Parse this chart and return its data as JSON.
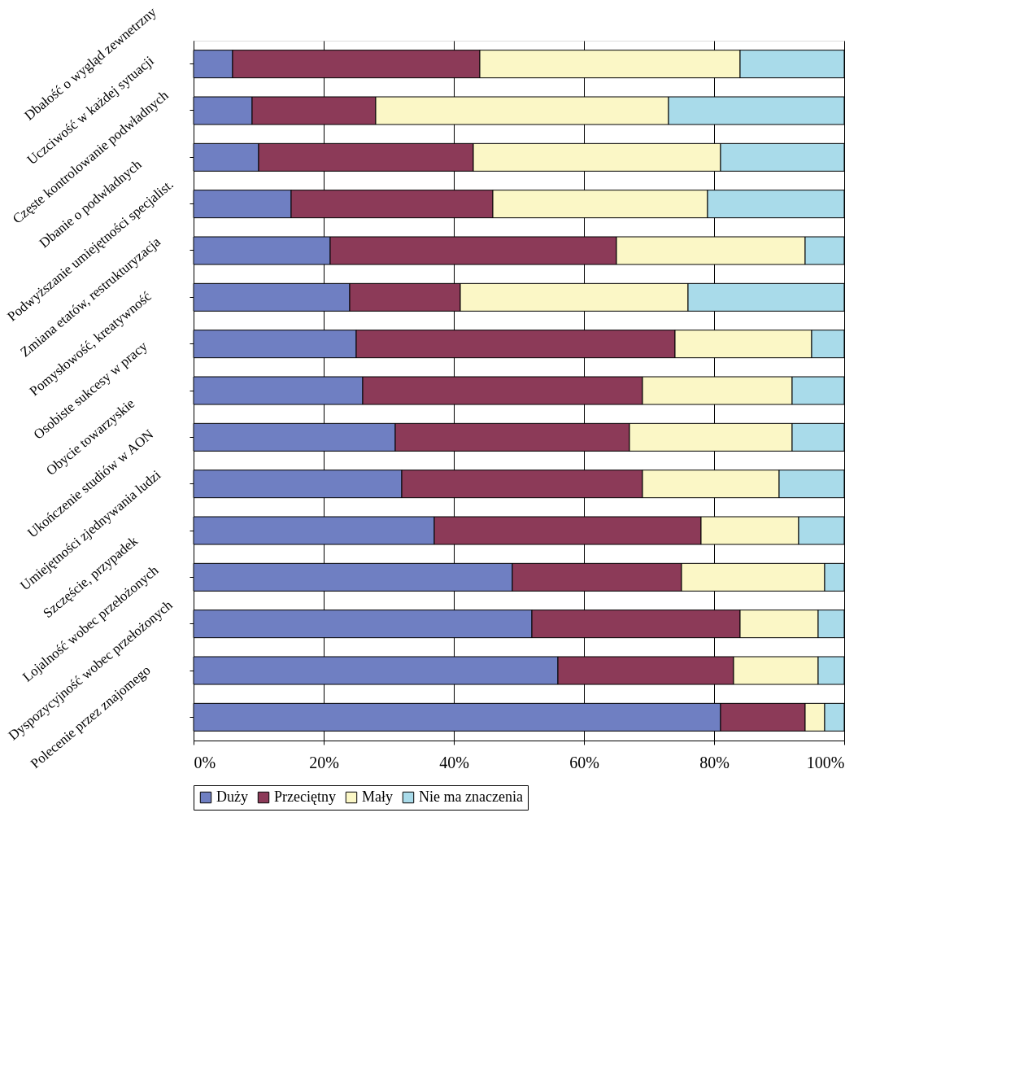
{
  "chart_data": {
    "type": "bar",
    "orientation": "horizontal",
    "stacked": true,
    "categories": [
      "Dbałość o wygląd zewnetrzny",
      "Uczciwość w każdej sytuacji",
      "Częste kontrolowanie podwładnych",
      "Dbanie o podwładnych",
      "Podwyższanie umiejętności specjalist.",
      "Zmiana etatów, restrukturyzacja",
      "Pomysłowość, kreatywność",
      "Osobiste sukcesy w pracy",
      "Obycie towarzyskie",
      "Ukończenie studiów w AON",
      "Umiejętności zjednywania ludzi",
      "Szczęście, przypadek",
      "Lojalność wobec przełożonych",
      "Dyspozycyjność wobec przełożonych",
      "Polecenie przez znajomego"
    ],
    "series": [
      {
        "name": "Duży",
        "color": "#6f7fc2",
        "values": [
          6,
          9,
          10,
          15,
          21,
          24,
          25,
          26,
          31,
          32,
          37,
          49,
          52,
          56,
          81
        ]
      },
      {
        "name": "Przeciętny",
        "color": "#8c3a58",
        "values": [
          38,
          19,
          33,
          31,
          44,
          17,
          49,
          43,
          36,
          37,
          41,
          26,
          32,
          27,
          13
        ]
      },
      {
        "name": "Mały",
        "color": "#fbf7c6",
        "values": [
          40,
          45,
          38,
          33,
          29,
          35,
          21,
          23,
          25,
          21,
          15,
          22,
          12,
          13,
          3
        ]
      },
      {
        "name": "Nie ma znaczenia",
        "color": "#a9dbea",
        "values": [
          16,
          27,
          19,
          21,
          6,
          24,
          5,
          8,
          8,
          10,
          7,
          3,
          4,
          4,
          3
        ]
      }
    ],
    "xlim": [
      0,
      100
    ],
    "xticks": [
      {
        "value": 0,
        "label": "0%"
      },
      {
        "value": 20,
        "label": "20%"
      },
      {
        "value": 40,
        "label": "40%"
      },
      {
        "value": 60,
        "label": "60%"
      },
      {
        "value": 80,
        "label": "80%"
      },
      {
        "value": 100,
        "label": "100%"
      }
    ],
    "grid": "x",
    "legend": "bottom"
  }
}
